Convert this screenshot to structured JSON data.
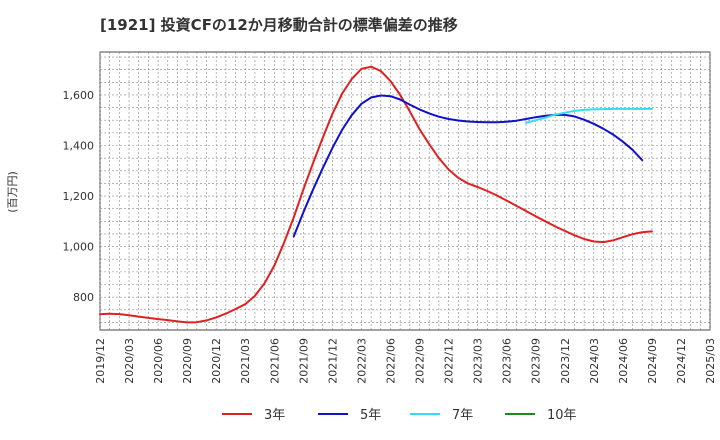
{
  "title": "[1921]  投資CFの12か月移動合計の標準偏差の推移",
  "chart_data": {
    "type": "line",
    "title": "[1921]  投資CFの12か月移動合計の標準偏差の推移",
    "xlabel": "",
    "ylabel": "(百万円)",
    "x_ticks": [
      "2019/12",
      "2020/03",
      "2020/06",
      "2020/09",
      "2020/12",
      "2021/03",
      "2021/06",
      "2021/09",
      "2021/12",
      "2022/03",
      "2022/06",
      "2022/09",
      "2022/12",
      "2023/03",
      "2023/06",
      "2023/09",
      "2023/12",
      "2024/03",
      "2024/06",
      "2024/09",
      "2024/12",
      "2025/03"
    ],
    "y_ticks": [
      800,
      1000,
      1200,
      1400,
      1600
    ],
    "y_tick_labels": [
      "800",
      "1,000",
      "1,200",
      "1,400",
      "1,600"
    ],
    "ylim": [
      670,
      1770
    ],
    "grid": true,
    "legend_position": "bottom",
    "series": [
      {
        "name": "3年",
        "color": "#dd2222",
        "values": [
          [
            "2019/12",
            733
          ],
          [
            "2020/01",
            734
          ],
          [
            "2020/02",
            733
          ],
          [
            "2020/03",
            728
          ],
          [
            "2020/04",
            723
          ],
          [
            "2020/05",
            718
          ],
          [
            "2020/06",
            713
          ],
          [
            "2020/07",
            709
          ],
          [
            "2020/08",
            704
          ],
          [
            "2020/09",
            700
          ],
          [
            "2020/10",
            701
          ],
          [
            "2020/11",
            708
          ],
          [
            "2020/12",
            720
          ],
          [
            "2021/01",
            735
          ],
          [
            "2021/02",
            753
          ],
          [
            "2021/03",
            772
          ],
          [
            "2021/04",
            805
          ],
          [
            "2021/05",
            855
          ],
          [
            "2021/06",
            925
          ],
          [
            "2021/07",
            1015
          ],
          [
            "2021/08",
            1115
          ],
          [
            "2021/09",
            1225
          ],
          [
            "2021/10",
            1330
          ],
          [
            "2021/11",
            1430
          ],
          [
            "2021/12",
            1525
          ],
          [
            "2022/01",
            1605
          ],
          [
            "2022/02",
            1663
          ],
          [
            "2022/03",
            1703
          ],
          [
            "2022/04",
            1712
          ],
          [
            "2022/05",
            1695
          ],
          [
            "2022/06",
            1655
          ],
          [
            "2022/07",
            1600
          ],
          [
            "2022/08",
            1535
          ],
          [
            "2022/09",
            1465
          ],
          [
            "2022/10",
            1405
          ],
          [
            "2022/11",
            1350
          ],
          [
            "2022/12",
            1305
          ],
          [
            "2023/01",
            1272
          ],
          [
            "2023/02",
            1250
          ],
          [
            "2023/03",
            1236
          ],
          [
            "2023/04",
            1220
          ],
          [
            "2023/05",
            1202
          ],
          [
            "2023/06",
            1182
          ],
          [
            "2023/07",
            1162
          ],
          [
            "2023/08",
            1141
          ],
          [
            "2023/09",
            1120
          ],
          [
            "2023/10",
            1100
          ],
          [
            "2023/11",
            1080
          ],
          [
            "2023/12",
            1062
          ],
          [
            "2024/01",
            1045
          ],
          [
            "2024/02",
            1030
          ],
          [
            "2024/03",
            1020
          ],
          [
            "2024/04",
            1018
          ],
          [
            "2024/05",
            1025
          ],
          [
            "2024/06",
            1037
          ],
          [
            "2024/07",
            1049
          ],
          [
            "2024/08",
            1057
          ],
          [
            "2024/09",
            1060
          ]
        ]
      },
      {
        "name": "5年",
        "color": "#1111cc",
        "values": [
          [
            "2021/08",
            1040
          ],
          [
            "2021/09",
            1135
          ],
          [
            "2021/10",
            1225
          ],
          [
            "2021/11",
            1310
          ],
          [
            "2021/12",
            1390
          ],
          [
            "2022/01",
            1462
          ],
          [
            "2022/02",
            1520
          ],
          [
            "2022/03",
            1565
          ],
          [
            "2022/04",
            1590
          ],
          [
            "2022/05",
            1598
          ],
          [
            "2022/06",
            1595
          ],
          [
            "2022/07",
            1582
          ],
          [
            "2022/08",
            1562
          ],
          [
            "2022/09",
            1543
          ],
          [
            "2022/10",
            1527
          ],
          [
            "2022/11",
            1514
          ],
          [
            "2022/12",
            1505
          ],
          [
            "2023/01",
            1499
          ],
          [
            "2023/02",
            1495
          ],
          [
            "2023/03",
            1493
          ],
          [
            "2023/04",
            1492
          ],
          [
            "2023/05",
            1492
          ],
          [
            "2023/06",
            1494
          ],
          [
            "2023/07",
            1498
          ],
          [
            "2023/08",
            1505
          ],
          [
            "2023/09",
            1512
          ],
          [
            "2023/10",
            1518
          ],
          [
            "2023/11",
            1521
          ],
          [
            "2023/12",
            1521
          ],
          [
            "2024/01",
            1515
          ],
          [
            "2024/02",
            1502
          ],
          [
            "2024/03",
            1486
          ],
          [
            "2024/04",
            1466
          ],
          [
            "2024/05",
            1443
          ],
          [
            "2024/06",
            1415
          ],
          [
            "2024/07",
            1383
          ],
          [
            "2024/08",
            1342
          ]
        ]
      },
      {
        "name": "7年",
        "color": "#33ddee",
        "values": [
          [
            "2023/08",
            1490
          ],
          [
            "2023/09",
            1500
          ],
          [
            "2023/10",
            1510
          ],
          [
            "2023/11",
            1522
          ],
          [
            "2023/12",
            1530
          ],
          [
            "2024/01",
            1537
          ],
          [
            "2024/02",
            1541
          ],
          [
            "2024/03",
            1543
          ],
          [
            "2024/04",
            1544
          ],
          [
            "2024/05",
            1545
          ],
          [
            "2024/06",
            1545
          ],
          [
            "2024/07",
            1545
          ],
          [
            "2024/08",
            1545
          ],
          [
            "2024/09",
            1545
          ]
        ]
      },
      {
        "name": "10年",
        "color": "#228822",
        "values": []
      }
    ]
  }
}
